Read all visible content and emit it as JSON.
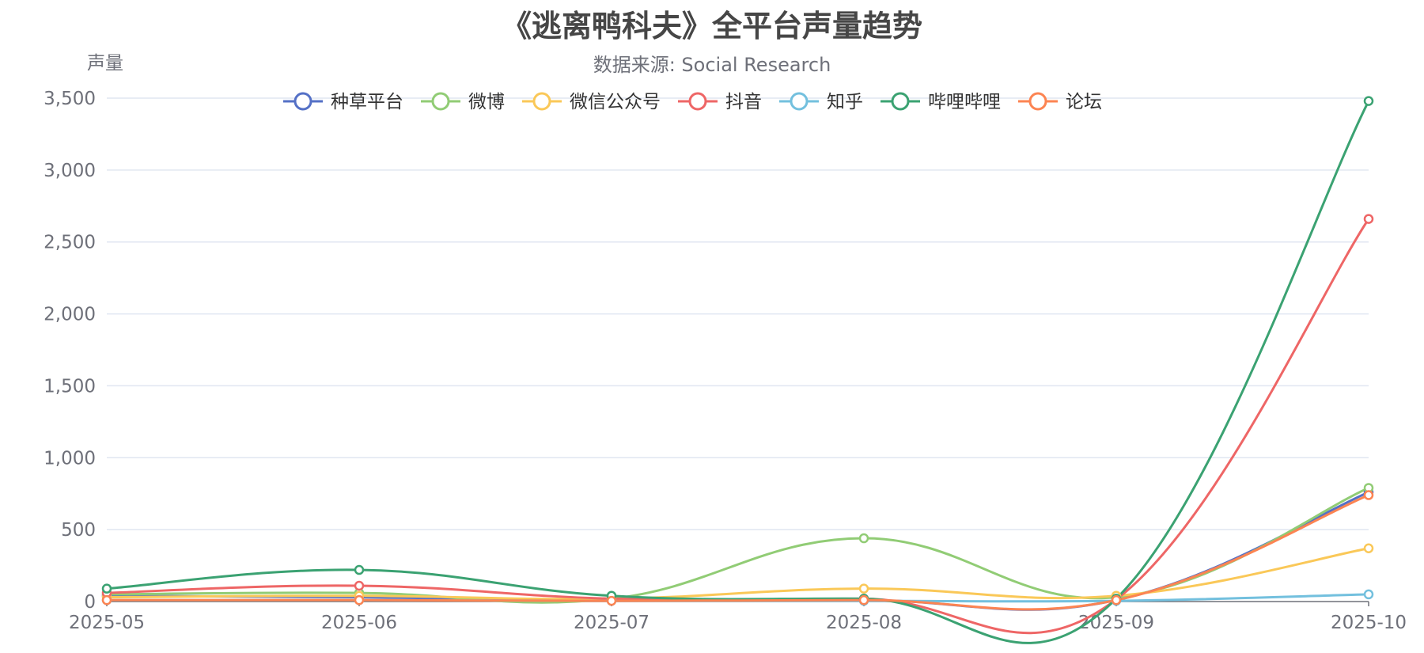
{
  "chart_data": {
    "type": "line",
    "title": "《逃离鸭科夫》全平台声量趋势",
    "subtitle": "数据来源: Social Research",
    "ylabel": "声量",
    "xlabel": "",
    "categories": [
      "2025-05",
      "2025-06",
      "2025-07",
      "2025-08",
      "2025-09",
      "2025-10"
    ],
    "ylim": [
      0,
      3500
    ],
    "yticks": [
      0,
      500,
      1000,
      1500,
      2000,
      2500,
      3000,
      3500
    ],
    "ytick_labels": [
      "0",
      "500",
      "1,000",
      "1,500",
      "2,000",
      "2,500",
      "3,000",
      "3,500"
    ],
    "grid": true,
    "legend_position": "top-center",
    "smooth": true,
    "series": [
      {
        "name": "种草平台",
        "color": "#5470c6",
        "values": [
          40,
          30,
          10,
          10,
          10,
          760
        ]
      },
      {
        "name": "微博",
        "color": "#91cc75",
        "values": [
          50,
          60,
          20,
          440,
          30,
          790
        ]
      },
      {
        "name": "微信公众号",
        "color": "#fac858",
        "values": [
          30,
          40,
          20,
          90,
          40,
          370
        ]
      },
      {
        "name": "抖音",
        "color": "#ee6666",
        "values": [
          60,
          110,
          20,
          20,
          15,
          2660
        ]
      },
      {
        "name": "知乎",
        "color": "#73c0de",
        "values": [
          10,
          10,
          5,
          5,
          5,
          50
        ]
      },
      {
        "name": "哔哩哔哩",
        "color": "#3ba272",
        "values": [
          90,
          220,
          40,
          20,
          20,
          3480
        ]
      },
      {
        "name": "论坛",
        "color": "#fc8452",
        "values": [
          10,
          10,
          5,
          10,
          10,
          740
        ]
      }
    ]
  }
}
